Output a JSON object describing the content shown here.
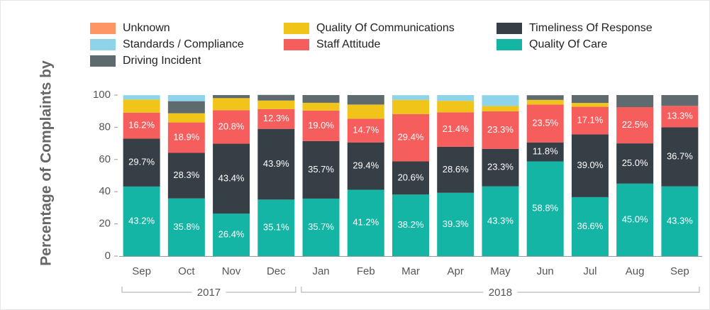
{
  "chart_data": {
    "type": "stacked_bar",
    "ylabel": "Percentage of Complaints by",
    "categories": [
      "Sep",
      "Oct",
      "Nov",
      "Dec",
      "Jan",
      "Feb",
      "Mar",
      "Apr",
      "May",
      "Jun",
      "Jul",
      "Aug",
      "Sep"
    ],
    "category_groups": [
      {
        "label": "2017",
        "count": 4
      },
      {
        "label": "2018",
        "count": 9
      }
    ],
    "ylim": [
      0,
      100
    ],
    "yticks": [
      0,
      20,
      40,
      60,
      80,
      100
    ],
    "series": [
      {
        "name": "Quality Of Care",
        "color": "#14b5a4",
        "values": [
          43.2,
          35.8,
          26.4,
          35.1,
          35.7,
          41.2,
          38.2,
          39.3,
          43.3,
          58.8,
          36.6,
          45.0,
          43.3
        ],
        "value_labels": [
          "43.2%",
          "35.8%",
          "26.4%",
          "35.1%",
          "35.7%",
          "41.2%",
          "38.2%",
          "39.3%",
          "43.3%",
          "58.8%",
          "36.6%",
          "45.0%",
          "43.3%"
        ]
      },
      {
        "name": "Timeliness Of Response",
        "color": "#363f45",
        "values": [
          29.7,
          28.3,
          43.4,
          43.9,
          35.7,
          29.4,
          20.6,
          28.6,
          23.3,
          11.8,
          39.0,
          25.0,
          36.7
        ],
        "value_labels": [
          "29.7%",
          "28.3%",
          "43.4%",
          "43.9%",
          "35.7%",
          "29.4%",
          "20.6%",
          "28.6%",
          "23.3%",
          "11.8%",
          "39.0%",
          "25.0%",
          "36.7%"
        ]
      },
      {
        "name": "Staff Attitude",
        "color": "#f65d5d",
        "values": [
          16.2,
          18.9,
          20.8,
          12.3,
          19.0,
          14.7,
          29.4,
          21.4,
          23.3,
          23.5,
          17.1,
          22.5,
          13.3
        ],
        "value_labels": [
          "16.2%",
          "18.9%",
          "20.8%",
          "12.3%",
          "19.0%",
          "14.7%",
          "29.4%",
          "21.4%",
          "23.3%",
          "23.5%",
          "17.1%",
          "22.5%",
          "13.3%"
        ]
      },
      {
        "name": "Quality Of Communications",
        "color": "#f0c419",
        "values": [
          8.1,
          5.7,
          7.5,
          5.3,
          4.8,
          8.8,
          8.8,
          7.1,
          3.3,
          2.9,
          2.4,
          0,
          0
        ]
      },
      {
        "name": "Driving Incident",
        "color": "#5f6a6e",
        "values": [
          0,
          7.5,
          1.9,
          3.5,
          4.8,
          5.9,
          0,
          0,
          0,
          2.9,
          4.9,
          7.5,
          6.7
        ]
      },
      {
        "name": "Standards / Compliance",
        "color": "#8dd3ea",
        "values": [
          2.7,
          3.8,
          0,
          0,
          0,
          0,
          2.9,
          3.6,
          6.7,
          0,
          0,
          0,
          0
        ]
      },
      {
        "name": "Unknown",
        "color": "#fd9565",
        "values": [
          0,
          0,
          0,
          0,
          0,
          0,
          0,
          0,
          0,
          0,
          0,
          0,
          0
        ]
      }
    ]
  }
}
